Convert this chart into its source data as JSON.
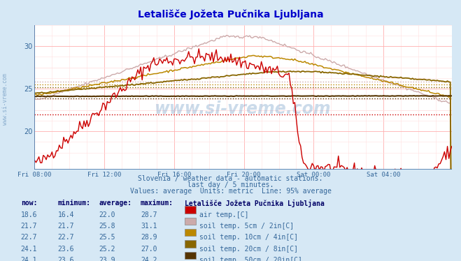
{
  "title": "Letališče Jožeta Pučnika Ljubljana",
  "subtitle1": "Slovenia / weather data - automatic stations.",
  "subtitle2": "last day / 5 minutes.",
  "subtitle3": "Values: average  Units: metric  Line: 95% average",
  "bg_color": "#d6e8f5",
  "plot_bg_color": "#ffffff",
  "grid_color": "#ffb0b0",
  "grid_minor_color": "#ffe0e0",
  "xlim": [
    0,
    287
  ],
  "ylim": [
    15.5,
    32.5
  ],
  "yticks": [
    20,
    25,
    30
  ],
  "xtick_labels": [
    "Fri 08:00",
    "Fri 12:00",
    "Fri 16:00",
    "Fri 20:00",
    "Sat 00:00",
    "Sat 04:00"
  ],
  "xtick_positions": [
    0,
    48,
    96,
    144,
    192,
    240
  ],
  "series": {
    "air_temp": {
      "color": "#cc0000",
      "avg": 22.0,
      "label": "air temp.[C]"
    },
    "soil5": {
      "color": "#ccaaaa",
      "avg": 25.8,
      "label": "soil temp. 5cm / 2in[C]"
    },
    "soil10": {
      "color": "#bb8800",
      "avg": 25.5,
      "label": "soil temp. 10cm / 4in[C]"
    },
    "soil20": {
      "color": "#886600",
      "avg": 25.2,
      "label": "soil temp. 20cm / 8in[C]"
    },
    "soil50": {
      "color": "#553300",
      "avg": 23.9,
      "label": "soil temp. 50cm / 20in[C]"
    }
  },
  "legend_data": [
    {
      "now": "18.6",
      "min": "16.4",
      "avg": "22.0",
      "max": "28.7",
      "color": "#cc0000",
      "label": "air temp.[C]"
    },
    {
      "now": "21.7",
      "min": "21.7",
      "avg": "25.8",
      "max": "31.1",
      "color": "#ccaaaa",
      "label": "soil temp. 5cm / 2in[C]"
    },
    {
      "now": "22.7",
      "min": "22.7",
      "avg": "25.5",
      "max": "28.9",
      "color": "#bb8800",
      "label": "soil temp. 10cm / 4in[C]"
    },
    {
      "now": "24.1",
      "min": "23.6",
      "avg": "25.2",
      "max": "27.0",
      "color": "#886600",
      "label": "soil temp. 20cm / 8in[C]"
    },
    {
      "now": "24.1",
      "min": "23.6",
      "avg": "23.9",
      "max": "24.2",
      "color": "#553300",
      "label": "soil temp. 50cm / 20in[C]"
    }
  ],
  "watermark": "www.si-vreme.com",
  "sidebar_text": "www.si-vreme.com"
}
